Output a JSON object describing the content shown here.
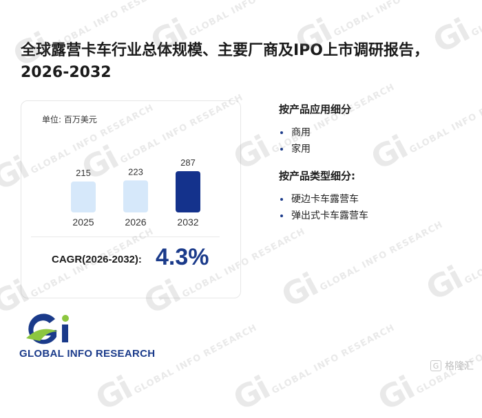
{
  "title": "全球露营卡车行业总体规模、主要厂商及IPO上市调研报告，2026-2032",
  "chart_data": {
    "type": "bar",
    "unit_label": "单位: 百万美元",
    "categories": [
      "2025",
      "2026",
      "2032"
    ],
    "values": [
      215,
      223,
      287
    ],
    "data_labels": [
      "215",
      "223",
      "287"
    ],
    "colors": [
      "#d6e8fa",
      "#d6e8fa",
      "#14328c"
    ]
  },
  "cagr": {
    "label": "CAGR(2026-2032):",
    "value": "4.3%"
  },
  "segments": [
    {
      "heading": "按产品应用细分",
      "items": [
        "商用",
        "家用"
      ]
    },
    {
      "heading": "按产品类型细分:",
      "items": [
        "硬边卡车露营车",
        "弹出式卡车露营车"
      ]
    }
  ],
  "logo": {
    "text": "GLOBAL INFO RESEARCH",
    "mark": "Gi"
  },
  "watermark": {
    "mark": "Gi",
    "text": "GLOBAL INFO RESEARCH"
  },
  "credit": {
    "text": "格隆汇"
  },
  "colors": {
    "brand_blue": "#1a3a8a",
    "brand_green": "#8cc63f",
    "bar_light": "#d6e8fa",
    "bar_dark": "#14328c"
  }
}
